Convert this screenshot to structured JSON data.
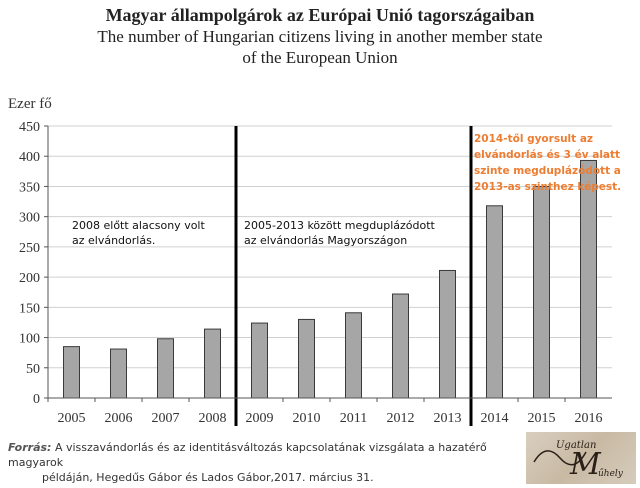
{
  "title": {
    "line1": "Magyar állampolgárok az Európai Unió tagországaiban",
    "line2": "The number of Hungarian citizens living in another member state",
    "line3": "of the European Union"
  },
  "chart_data": {
    "type": "bar",
    "ylabel": "Ezer fő",
    "ylim": [
      0,
      450
    ],
    "yticks": [
      0,
      50,
      100,
      150,
      200,
      250,
      300,
      350,
      400,
      450
    ],
    "categories": [
      "2005",
      "2006",
      "2007",
      "2008",
      "2009",
      "2010",
      "2011",
      "2012",
      "2013",
      "2014",
      "2015",
      "2016"
    ],
    "values": [
      85,
      81,
      98,
      114,
      124,
      130,
      141,
      172,
      211,
      318,
      350,
      393
    ],
    "bar_color": "#a6a6a6",
    "grid": "horizontal",
    "dividers_after": [
      "2008",
      "2013"
    ],
    "annotations": [
      {
        "lines": [
          "2008 előtt alacsony volt",
          "az elvándorlás."
        ],
        "color": "#111111"
      },
      {
        "lines": [
          "2005-2013 között megduplázódott",
          "az elvándorlás Magyországon"
        ],
        "color": "#111111"
      },
      {
        "lines": [
          "2014-től gyorsult az",
          "elvándorlás és 3 év alatt",
          "szinte megduplázódott a",
          "2013-as szinthez képest."
        ],
        "color": "#ed7d31"
      }
    ]
  },
  "source": {
    "label": "Forrás:",
    "line1": "A visszavándorlás és az identitásváltozás kapcsolatának vizsgálata a hazatérő magyarok",
    "line2": "példáján, Hegedűs Gábor és Lados Gábor,2017. március 31."
  },
  "logo": {
    "text1": "Ugatlan",
    "text2": "M",
    "text3": "űhely"
  }
}
